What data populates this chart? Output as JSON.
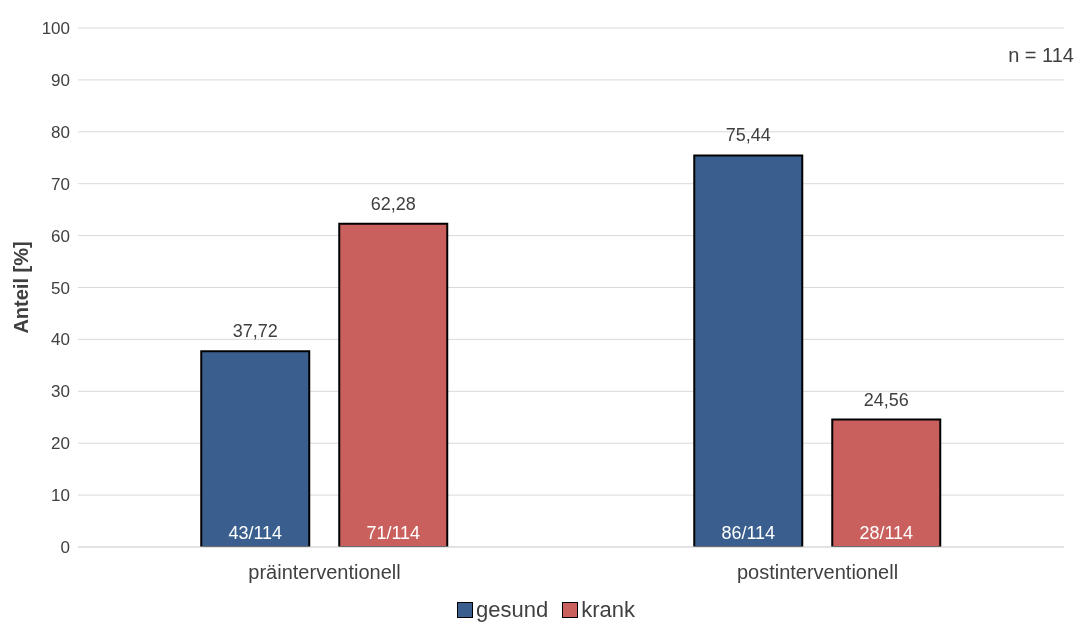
{
  "chart_data": {
    "type": "bar",
    "ylabel": "Anteil [%]",
    "categories": [
      "präinterventionell",
      "postinterventionell"
    ],
    "series": [
      {
        "name": "gesund",
        "color": "#3a5f8e",
        "values": [
          37.72,
          75.44
        ],
        "value_labels": [
          "37,72",
          "75,44"
        ]
      },
      {
        "name": "krank",
        "color": "#c9605d",
        "values": [
          62.28,
          24.56
        ],
        "value_labels": [
          "62,28",
          "24,56"
        ]
      }
    ],
    "ylim": [
      0,
      100
    ],
    "yticks": [
      0,
      10,
      20,
      30,
      40,
      50,
      60,
      70,
      80,
      90,
      100
    ],
    "grid": "y",
    "legend": "bottom",
    "annotations": [
      "n = 114",
      "43/114",
      "71/114",
      "86/114",
      "28/114"
    ]
  }
}
